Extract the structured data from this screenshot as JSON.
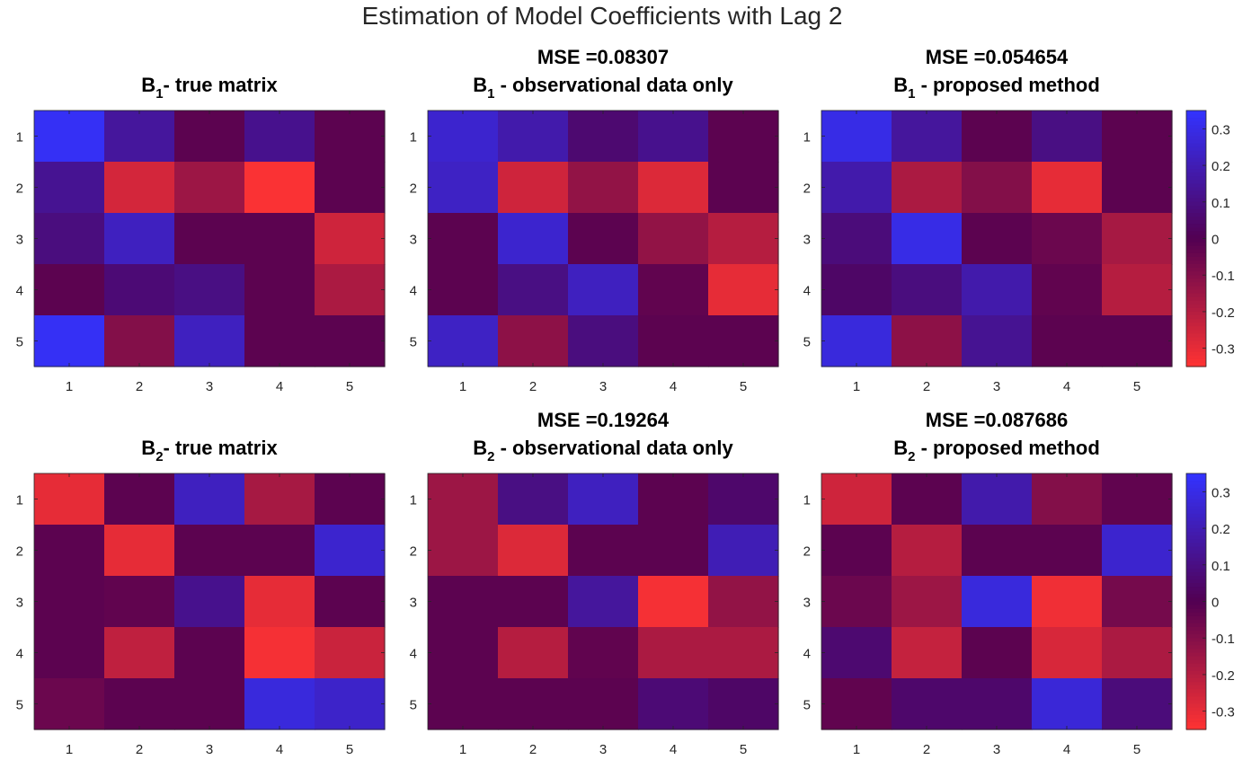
{
  "figure": {
    "title": "Estimation of Model Coefficients with Lag 2"
  },
  "chart_data": [
    {
      "type": "heatmap",
      "title_line1": "",
      "title_base": "B",
      "title_sub": "1",
      "title_rest": "- true matrix",
      "xticks": [
        "1",
        "2",
        "3",
        "4",
        "5"
      ],
      "yticks": [
        "1",
        "2",
        "3",
        "4",
        "5"
      ],
      "clim": [
        -0.35,
        0.35
      ],
      "values": [
        [
          0.33,
          0.15,
          -0.02,
          0.12,
          -0.02
        ],
        [
          0.13,
          -0.26,
          -0.15,
          -0.34,
          -0.02
        ],
        [
          0.09,
          0.22,
          -0.02,
          -0.02,
          -0.25
        ],
        [
          -0.02,
          0.07,
          0.1,
          -0.02,
          -0.18
        ],
        [
          0.33,
          -0.1,
          0.22,
          -0.02,
          -0.02
        ]
      ]
    },
    {
      "type": "heatmap",
      "title_line1": "MSE =0.08307",
      "title_base": "B",
      "title_sub": "1",
      "title_rest": " - observational data only",
      "xticks": [
        "1",
        "2",
        "3",
        "4",
        "5"
      ],
      "yticks": [
        "1",
        "2",
        "3",
        "4",
        "5"
      ],
      "clim": [
        -0.35,
        0.35
      ],
      "values": [
        [
          0.25,
          0.18,
          0.06,
          0.12,
          -0.02
        ],
        [
          0.23,
          -0.25,
          -0.13,
          -0.28,
          -0.02
        ],
        [
          -0.02,
          0.25,
          -0.02,
          -0.13,
          -0.2
        ],
        [
          -0.02,
          0.1,
          0.22,
          -0.03,
          -0.3
        ],
        [
          0.23,
          -0.12,
          0.09,
          -0.02,
          -0.02
        ]
      ]
    },
    {
      "type": "heatmap",
      "title_line1": "MSE =0.054654",
      "title_base": "B",
      "title_sub": "1",
      "title_rest": " - proposed method",
      "xticks": [
        "1",
        "2",
        "3",
        "4",
        "5"
      ],
      "yticks": [
        "1",
        "2",
        "3",
        "4",
        "5"
      ],
      "clim": [
        -0.35,
        0.35
      ],
      "values": [
        [
          0.3,
          0.15,
          -0.02,
          0.1,
          -0.02
        ],
        [
          0.18,
          -0.18,
          -0.1,
          -0.3,
          -0.02
        ],
        [
          0.08,
          0.3,
          -0.02,
          -0.05,
          -0.17
        ],
        [
          0.04,
          0.09,
          0.18,
          -0.03,
          -0.2
        ],
        [
          0.28,
          -0.12,
          0.13,
          -0.02,
          -0.02
        ]
      ]
    },
    {
      "type": "heatmap",
      "title_line1": "",
      "title_base": "B",
      "title_sub": "2",
      "title_rest": "- true matrix",
      "xticks": [
        "1",
        "2",
        "3",
        "4",
        "5"
      ],
      "yticks": [
        "1",
        "2",
        "3",
        "4",
        "5"
      ],
      "clim": [
        -0.35,
        0.35
      ],
      "values": [
        [
          -0.3,
          -0.02,
          0.22,
          -0.17,
          -0.02
        ],
        [
          -0.02,
          -0.3,
          -0.02,
          -0.02,
          0.25
        ],
        [
          -0.02,
          -0.03,
          0.12,
          -0.3,
          -0.02
        ],
        [
          -0.02,
          -0.22,
          -0.02,
          -0.33,
          -0.24
        ],
        [
          -0.05,
          -0.02,
          -0.02,
          0.28,
          0.24
        ]
      ]
    },
    {
      "type": "heatmap",
      "title_line1": "MSE =0.19264",
      "title_base": "B",
      "title_sub": "2",
      "title_rest": " - observational data only",
      "xticks": [
        "1",
        "2",
        "3",
        "4",
        "5"
      ],
      "yticks": [
        "1",
        "2",
        "3",
        "4",
        "5"
      ],
      "clim": [
        -0.35,
        0.35
      ],
      "values": [
        [
          -0.15,
          0.1,
          0.22,
          -0.02,
          0.05
        ],
        [
          -0.15,
          -0.28,
          -0.02,
          -0.02,
          0.2
        ],
        [
          -0.02,
          -0.02,
          0.15,
          -0.33,
          -0.13
        ],
        [
          -0.02,
          -0.2,
          -0.03,
          -0.18,
          -0.18
        ],
        [
          -0.02,
          -0.02,
          -0.02,
          0.07,
          0.04
        ]
      ]
    },
    {
      "type": "heatmap",
      "title_line1": "MSE =0.087686",
      "title_base": "B",
      "title_sub": "2",
      "title_rest": " - proposed method",
      "xticks": [
        "1",
        "2",
        "3",
        "4",
        "5"
      ],
      "yticks": [
        "1",
        "2",
        "3",
        "4",
        "5"
      ],
      "clim": [
        -0.35,
        0.35
      ],
      "values": [
        [
          -0.25,
          -0.02,
          0.18,
          -0.1,
          -0.03
        ],
        [
          -0.02,
          -0.2,
          -0.02,
          -0.02,
          0.25
        ],
        [
          -0.05,
          -0.15,
          0.28,
          -0.32,
          -0.07
        ],
        [
          0.06,
          -0.23,
          -0.02,
          -0.27,
          -0.18
        ],
        [
          -0.03,
          0.05,
          0.05,
          0.27,
          0.08
        ]
      ]
    }
  ],
  "colorbar": {
    "clim": [
      -0.35,
      0.35
    ],
    "ticks": [
      0.3,
      0.2,
      0.1,
      0,
      -0.1,
      -0.2,
      -0.3
    ],
    "tick_labels": [
      "0.3",
      "0.2",
      "0.1",
      "0",
      "-0.1",
      "-0.2",
      "-0.3"
    ],
    "color_pos": "#3333ff",
    "color_mid": "#520052",
    "color_neg": "#ff3333"
  }
}
